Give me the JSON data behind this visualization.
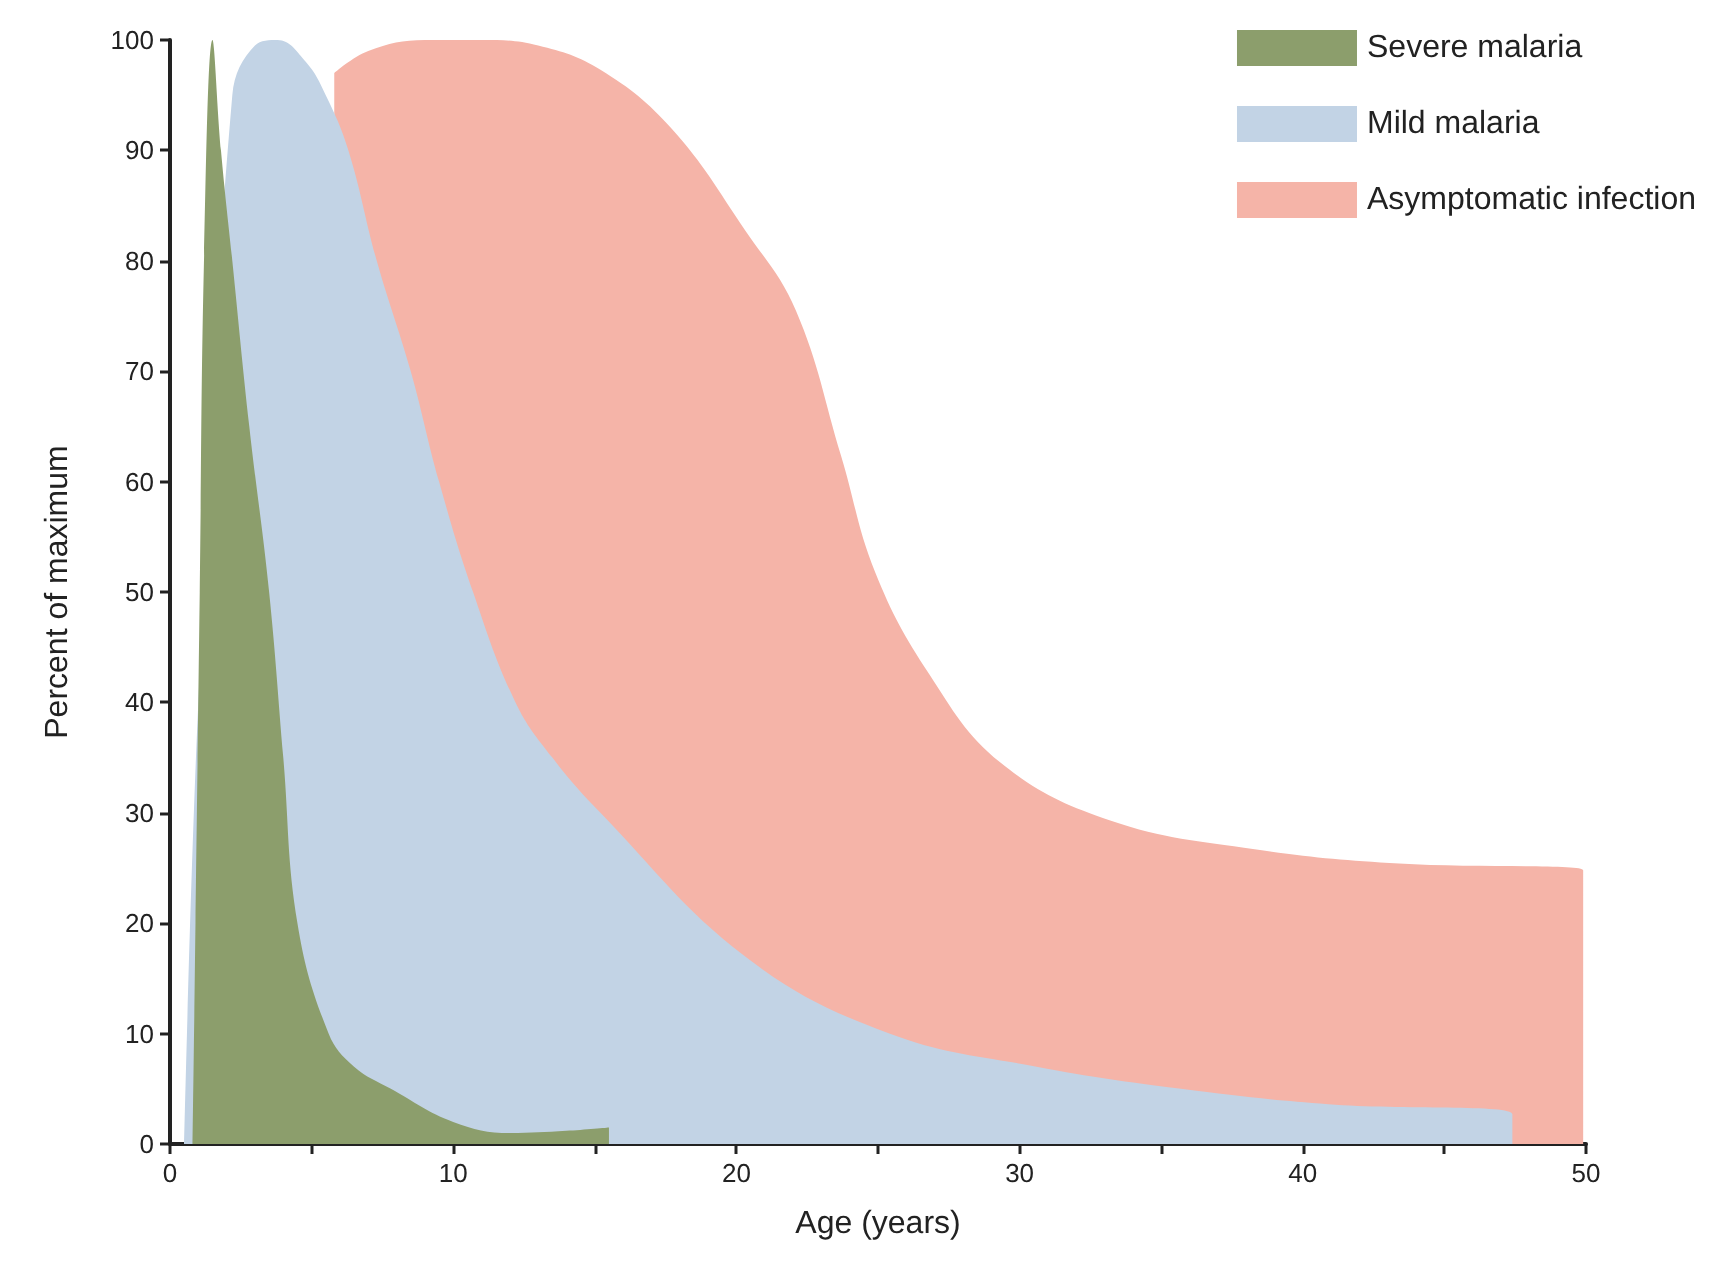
{
  "chart_data": {
    "type": "area",
    "xlabel": "Age (years)",
    "ylabel": "Percent of maximum",
    "xlim": [
      0,
      50
    ],
    "ylim": [
      0,
      100
    ],
    "xticks": [
      0,
      {
        "value": 5,
        "label": null
      },
      10,
      {
        "value": 15,
        "label": null
      },
      20,
      {
        "value": 25,
        "label": null
      },
      30,
      {
        "value": 35,
        "label": null
      },
      40,
      {
        "value": 45,
        "label": null
      },
      50
    ],
    "yticks": [
      0,
      10,
      20,
      30,
      40,
      50,
      60,
      70,
      80,
      90,
      100
    ],
    "grid": false,
    "legend": "top right",
    "marker": "none",
    "series": [
      {
        "name": "Severe malaria",
        "color": "#8c9e6c",
        "x": [
          0.8,
          0.9,
          1.05,
          1.2,
          1.5,
          1.8,
          2.2,
          2.8,
          3.5,
          4,
          4.5,
          5.6,
          6.5,
          7.8,
          10,
          12,
          14,
          15.5,
          15.5
        ],
        "values": [
          0,
          20,
          50,
          80,
          100,
          90,
          80,
          65,
          50,
          35,
          20,
          10,
          7,
          5,
          2,
          1,
          1.2,
          1.5,
          0
        ]
      },
      {
        "name": "Mild malaria",
        "color": "#c2d3e5",
        "x": [
          0.5,
          1,
          2.2,
          3,
          3.8,
          4.8,
          5.5,
          6.3,
          7.3,
          8.5,
          9.5,
          10.7,
          12.2,
          13.5,
          15.2,
          20.3,
          25.4,
          30.6,
          35.7,
          40.9,
          47.4,
          47.4
        ],
        "values": [
          0,
          40,
          95,
          99.5,
          100,
          98,
          95,
          90,
          80,
          70,
          60,
          50,
          40,
          35,
          30,
          17,
          10,
          7,
          5,
          3.6,
          2.7,
          0
        ]
      },
      {
        "name": "Asymptomatic infection",
        "color": "#f5b4a8",
        "x": [
          5.8,
          7,
          9,
          11,
          13,
          15.2,
          17.7,
          20.3,
          22.1,
          23.7,
          24.9,
          26.8,
          29.3,
          33.2,
          38.3,
          43.4,
          49.9,
          49.9
        ],
        "values": [
          97,
          99,
          100,
          100,
          99.5,
          97.3,
          92,
          82.8,
          75.5,
          62.3,
          51.8,
          42.6,
          34.6,
          29.3,
          26.7,
          25.4,
          24.8,
          0
        ]
      }
    ]
  }
}
